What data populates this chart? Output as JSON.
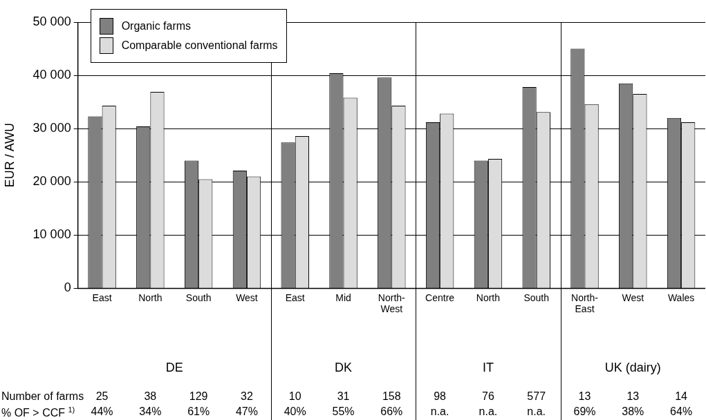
{
  "chart_data": {
    "type": "bar",
    "ylabel": "EUR / AWU",
    "categories": [
      "East",
      "North",
      "South",
      "West",
      "East",
      "Mid",
      "North-West",
      "Centre",
      "North",
      "South",
      "North-East",
      "West",
      "Wales"
    ],
    "series": [
      {
        "name": "Organic farms",
        "color": "#808080",
        "values": [
          32300,
          30400,
          24000,
          22100,
          27400,
          40400,
          39600,
          31200,
          24000,
          37800,
          45000,
          38500,
          32000
        ]
      },
      {
        "name": "Comparable conventional farms",
        "color": "#dcdcdc",
        "values": [
          34300,
          36900,
          20500,
          21000,
          28600,
          35800,
          34300,
          32800,
          24300,
          33100,
          34600,
          36500,
          31200
        ]
      }
    ],
    "ylim": [
      0,
      50000
    ],
    "yticks": [
      {
        "value": 0,
        "label": "0"
      },
      {
        "value": 10000,
        "label": "10 000"
      },
      {
        "value": 20000,
        "label": "20 000"
      },
      {
        "value": 30000,
        "label": "30 000"
      },
      {
        "value": 40000,
        "label": "40 000"
      },
      {
        "value": 50000,
        "label": "50 000"
      }
    ],
    "grid": "y",
    "legend": "top left",
    "annotations": [
      "DE",
      "DK",
      "IT",
      "UK (dairy)",
      "Number of farms",
      "25",
      "38",
      "129",
      "32",
      "10",
      "31",
      "158",
      "98",
      "76",
      "577",
      "13",
      "13",
      "14",
      "% OF > CCF $^{1)}$",
      "44%",
      "34%",
      "61%",
      "47%",
      "40%",
      "55%",
      "66%",
      "n.a.",
      "n.a.",
      "n.a.",
      "69%",
      "38%",
      "64%"
    ]
  }
}
